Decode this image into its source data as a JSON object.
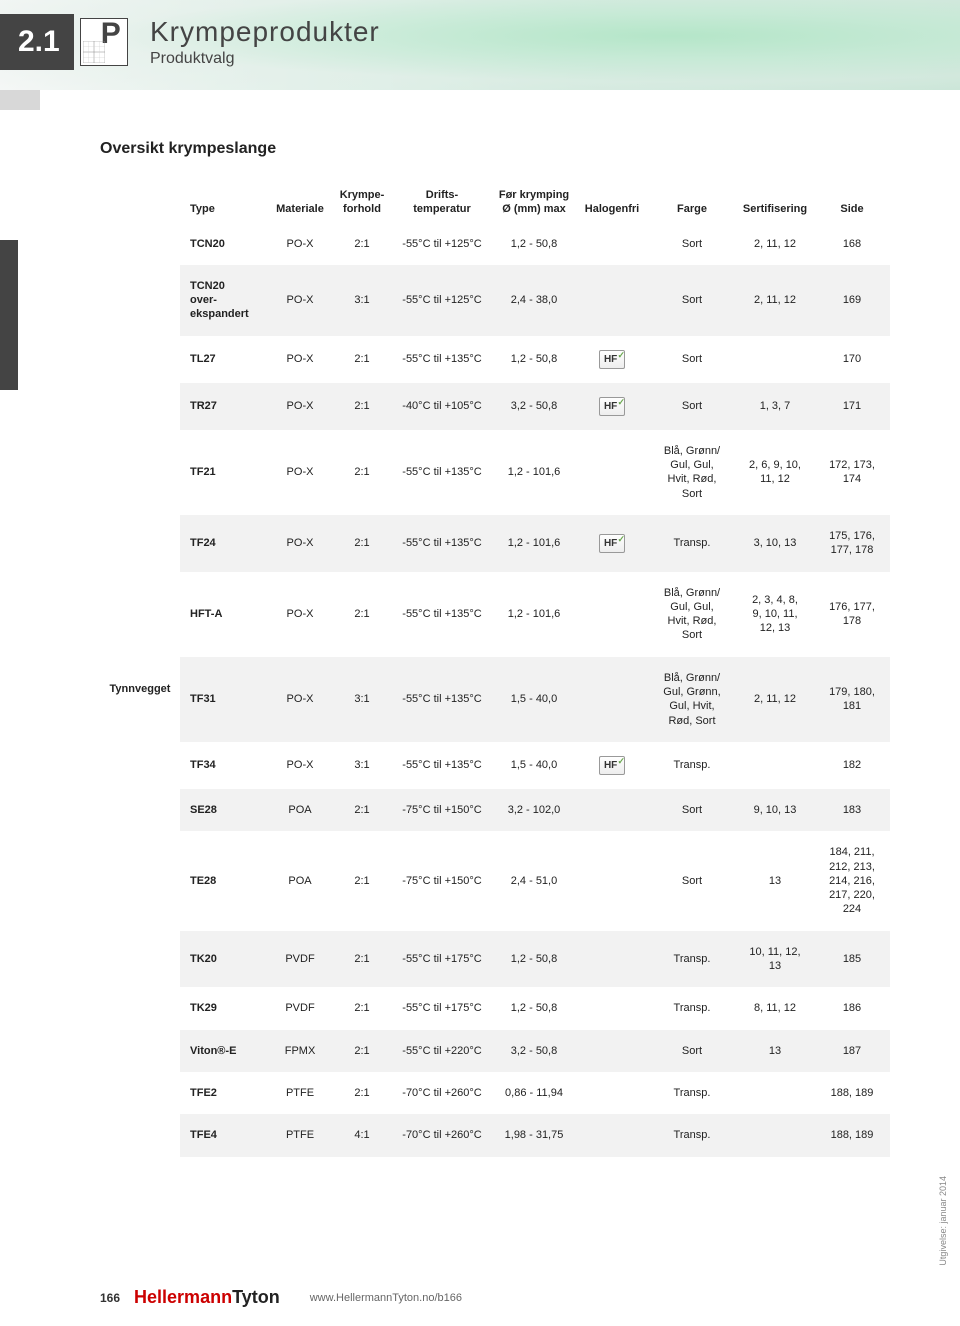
{
  "section_number": "2.1",
  "header_title": "Krympeprodukter",
  "header_subtitle": "Produktvalg",
  "overview_title": "Oversikt krympeslange",
  "side_label": "Tynnvegget",
  "columns": {
    "type": "Type",
    "material": "Materiale",
    "ratio": "Krympe-\nforhold",
    "temp": "Drifts-\ntemperatur",
    "diameter": "Før krymping\nØ (mm) max",
    "halogen": "Halogenfri",
    "color": "Farge",
    "cert": "Sertifisering",
    "page": "Side"
  },
  "rows": [
    {
      "type": "TCN20",
      "material": "PO-X",
      "ratio": "2:1",
      "temp": "-55°C til +125°C",
      "diameter": "1,2 - 50,8",
      "halogen": "",
      "color": "Sort",
      "cert": "2, 11, 12",
      "page": "168",
      "shade": "odd"
    },
    {
      "type": "TCN20\nover-\nekspandert",
      "material": "PO-X",
      "ratio": "3:1",
      "temp": "-55°C til +125°C",
      "diameter": "2,4 - 38,0",
      "halogen": "",
      "color": "Sort",
      "cert": "2, 11, 12",
      "page": "169",
      "shade": "even"
    },
    {
      "type": "TL27",
      "material": "PO-X",
      "ratio": "2:1",
      "temp": "-55°C til +135°C",
      "diameter": "1,2 - 50,8",
      "halogen": "HF",
      "color": "Sort",
      "cert": "",
      "page": "170",
      "shade": "odd"
    },
    {
      "type": "TR27",
      "material": "PO-X",
      "ratio": "2:1",
      "temp": "-40°C til +105°C",
      "diameter": "3,2 - 50,8",
      "halogen": "HF",
      "color": "Sort",
      "cert": "1, 3, 7",
      "page": "171",
      "shade": "even"
    },
    {
      "type": "TF21",
      "material": "PO-X",
      "ratio": "2:1",
      "temp": "-55°C til +135°C",
      "diameter": "1,2 - 101,6",
      "halogen": "",
      "color": "Blå, Grønn/\nGul, Gul,\nHvit, Rød,\nSort",
      "cert": "2, 6, 9, 10,\n11, 12",
      "page": "172, 173,\n174",
      "shade": "odd"
    },
    {
      "type": "TF24",
      "material": "PO-X",
      "ratio": "2:1",
      "temp": "-55°C til +135°C",
      "diameter": "1,2 - 101,6",
      "halogen": "HF",
      "color": "Transp.",
      "cert": "3, 10, 13",
      "page": "175, 176,\n177, 178",
      "shade": "even"
    },
    {
      "type": "HFT-A",
      "material": "PO-X",
      "ratio": "2:1",
      "temp": "-55°C til +135°C",
      "diameter": "1,2 - 101,6",
      "halogen": "",
      "color": "Blå, Grønn/\nGul, Gul,\nHvit, Rød,\nSort",
      "cert": "2, 3, 4, 8,\n9, 10, 11,\n12, 13",
      "page": "176, 177,\n178",
      "shade": "odd"
    },
    {
      "type": "TF31",
      "material": "PO-X",
      "ratio": "3:1",
      "temp": "-55°C til +135°C",
      "diameter": "1,5 - 40,0",
      "halogen": "",
      "color": "Blå, Grønn/\nGul, Grønn,\nGul, Hvit,\nRød, Sort",
      "cert": "2, 11, 12",
      "page": "179, 180,\n181",
      "shade": "even"
    },
    {
      "type": "TF34",
      "material": "PO-X",
      "ratio": "3:1",
      "temp": "-55°C til +135°C",
      "diameter": "1,5 - 40,0",
      "halogen": "HF",
      "color": "Transp.",
      "cert": "",
      "page": "182",
      "shade": "odd"
    },
    {
      "type": "SE28",
      "material": "POA",
      "ratio": "2:1",
      "temp": "-75°C til +150°C",
      "diameter": "3,2 - 102,0",
      "halogen": "",
      "color": "Sort",
      "cert": "9, 10, 13",
      "page": "183",
      "shade": "even"
    },
    {
      "type": "TE28",
      "material": "POA",
      "ratio": "2:1",
      "temp": "-75°C til +150°C",
      "diameter": "2,4 - 51,0",
      "halogen": "",
      "color": "Sort",
      "cert": "13",
      "page": "184, 211,\n212, 213,\n214, 216,\n217, 220,\n224",
      "shade": "odd"
    },
    {
      "type": "TK20",
      "material": "PVDF",
      "ratio": "2:1",
      "temp": "-55°C til +175°C",
      "diameter": "1,2 - 50,8",
      "halogen": "",
      "color": "Transp.",
      "cert": "10, 11, 12,\n13",
      "page": "185",
      "shade": "even"
    },
    {
      "type": "TK29",
      "material": "PVDF",
      "ratio": "2:1",
      "temp": "-55°C til +175°C",
      "diameter": "1,2 - 50,8",
      "halogen": "",
      "color": "Transp.",
      "cert": "8, 11, 12",
      "page": "186",
      "shade": "odd"
    },
    {
      "type": "Viton®-E",
      "material": "FPMX",
      "ratio": "2:1",
      "temp": "-55°C til +220°C",
      "diameter": "3,2 - 50,8",
      "halogen": "",
      "color": "Sort",
      "cert": "13",
      "page": "187",
      "shade": "even"
    },
    {
      "type": "TFE2",
      "material": "PTFE",
      "ratio": "2:1",
      "temp": "-70°C til +260°C",
      "diameter": "0,86 - 11,94",
      "halogen": "",
      "color": "Transp.",
      "cert": "",
      "page": "188, 189",
      "shade": "odd"
    },
    {
      "type": "TFE4",
      "material": "PTFE",
      "ratio": "4:1",
      "temp": "-70°C til +260°C",
      "diameter": "1,98 - 31,75",
      "halogen": "",
      "color": "Transp.",
      "cert": "",
      "page": "188, 189",
      "shade": "even"
    }
  ],
  "footer": {
    "page_num": "166",
    "logo_h": "Hellermann",
    "logo_t": "Tyton",
    "url": "www.HellermannTyton.no/b166"
  },
  "edition": "Utgivelse: januar 2014",
  "column_widths": [
    "80px",
    "88px",
    "64px",
    "60px",
    "100px",
    "84px",
    "72px",
    "88px",
    "78px",
    "76px"
  ]
}
